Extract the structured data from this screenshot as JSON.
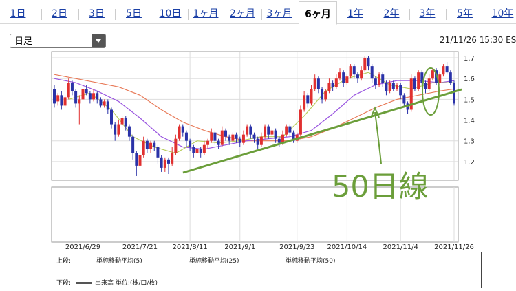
{
  "period_tabs": [
    "1日",
    "2日",
    "3日",
    "5日",
    "10日",
    "1ヶ月",
    "2ヶ月",
    "3ヶ月",
    "6ヶ月",
    "1年",
    "2年",
    "3年",
    "5年",
    "10年"
  ],
  "active_tab": "6ヶ月",
  "interval_select": {
    "value": "日足"
  },
  "timestamp": "21/11/26 15:30 ES",
  "annotation": {
    "label": "50日線"
  },
  "colors": {
    "up": "#e03030",
    "down": "#2a32a8",
    "ma5": "#b8cc5c",
    "ma25": "#9a56e0",
    "ma50": "#e87a58",
    "annotation": "#6b9e3a",
    "tab_link": "#1a3fa6"
  },
  "legend": {
    "upper_label": "上段:",
    "lower_label": "下段:",
    "ma5": "単純移動平均(5)",
    "ma25": "単純移動平均(25)",
    "ma50": "単純移動平均(50)",
    "volume": "出来高 単位:(株/口/枚)"
  },
  "chart_data": {
    "type": "candlestick",
    "y_ticks": [
      1.2,
      1.3,
      1.4,
      1.5,
      1.6,
      1.7
    ],
    "y_range": [
      1.11,
      1.73
    ],
    "x_ticks": [
      "2021/6/29",
      "2021/7/21",
      "2021/8/11",
      "2021/9/1",
      "2021/9/23",
      "2021/10/14",
      "2021/11/4",
      "2021/11/26"
    ],
    "x_tick_index": [
      8,
      24,
      38,
      52,
      68,
      82,
      97,
      112
    ],
    "candles": [
      [
        1.55,
        1.48,
        1.57,
        1.46
      ],
      [
        1.49,
        1.52,
        1.53,
        1.47
      ],
      [
        1.52,
        1.47,
        1.54,
        1.45
      ],
      [
        1.47,
        1.51,
        1.52,
        1.46
      ],
      [
        1.51,
        1.58,
        1.6,
        1.5
      ],
      [
        1.58,
        1.54,
        1.59,
        1.52
      ],
      [
        1.54,
        1.48,
        1.55,
        1.46
      ],
      [
        1.48,
        1.5,
        1.52,
        1.38
      ],
      [
        1.5,
        1.55,
        1.56,
        1.49
      ],
      [
        1.55,
        1.53,
        1.57,
        1.52
      ],
      [
        1.53,
        1.5,
        1.54,
        1.48
      ],
      [
        1.5,
        1.53,
        1.55,
        1.49
      ],
      [
        1.53,
        1.5,
        1.54,
        1.48
      ],
      [
        1.5,
        1.47,
        1.51,
        1.46
      ],
      [
        1.47,
        1.49,
        1.5,
        1.46
      ],
      [
        1.49,
        1.45,
        1.5,
        1.43
      ],
      [
        1.45,
        1.38,
        1.46,
        1.36
      ],
      [
        1.38,
        1.33,
        1.39,
        1.3
      ],
      [
        1.33,
        1.38,
        1.4,
        1.32
      ],
      [
        1.38,
        1.41,
        1.42,
        1.37
      ],
      [
        1.41,
        1.37,
        1.42,
        1.35
      ],
      [
        1.37,
        1.32,
        1.38,
        1.3
      ],
      [
        1.32,
        1.24,
        1.33,
        1.21
      ],
      [
        1.24,
        1.18,
        1.25,
        1.13
      ],
      [
        1.18,
        1.23,
        1.3,
        1.17
      ],
      [
        1.23,
        1.3,
        1.32,
        1.22
      ],
      [
        1.3,
        1.26,
        1.31,
        1.24
      ],
      [
        1.26,
        1.29,
        1.3,
        1.24
      ],
      [
        1.29,
        1.27,
        1.3,
        1.25
      ],
      [
        1.27,
        1.22,
        1.28,
        1.19
      ],
      [
        1.22,
        1.17,
        1.23,
        1.15
      ],
      [
        1.17,
        1.21,
        1.22,
        1.15
      ],
      [
        1.21,
        1.19,
        1.22,
        1.14
      ],
      [
        1.19,
        1.24,
        1.27,
        1.18
      ],
      [
        1.24,
        1.31,
        1.33,
        1.23
      ],
      [
        1.31,
        1.37,
        1.38,
        1.3
      ],
      [
        1.37,
        1.34,
        1.38,
        1.32
      ],
      [
        1.34,
        1.3,
        1.35,
        1.27
      ],
      [
        1.3,
        1.27,
        1.31,
        1.25
      ],
      [
        1.27,
        1.24,
        1.28,
        1.22
      ],
      [
        1.24,
        1.26,
        1.27,
        1.22
      ],
      [
        1.26,
        1.24,
        1.27,
        1.22
      ],
      [
        1.24,
        1.28,
        1.3,
        1.23
      ],
      [
        1.28,
        1.3,
        1.31,
        1.26
      ],
      [
        1.3,
        1.34,
        1.36,
        1.29
      ],
      [
        1.34,
        1.3,
        1.35,
        1.28
      ],
      [
        1.3,
        1.28,
        1.31,
        1.26
      ],
      [
        1.28,
        1.35,
        1.37,
        1.27
      ],
      [
        1.35,
        1.32,
        1.36,
        1.3
      ],
      [
        1.32,
        1.3,
        1.33,
        1.28
      ],
      [
        1.3,
        1.33,
        1.34,
        1.29
      ],
      [
        1.33,
        1.31,
        1.34,
        1.29
      ],
      [
        1.31,
        1.29,
        1.32,
        1.27
      ],
      [
        1.29,
        1.33,
        1.35,
        1.28
      ],
      [
        1.33,
        1.37,
        1.38,
        1.32
      ],
      [
        1.37,
        1.33,
        1.38,
        1.31
      ],
      [
        1.33,
        1.31,
        1.34,
        1.29
      ],
      [
        1.31,
        1.28,
        1.32,
        1.26
      ],
      [
        1.28,
        1.32,
        1.34,
        1.27
      ],
      [
        1.32,
        1.37,
        1.38,
        1.31
      ],
      [
        1.37,
        1.33,
        1.38,
        1.31
      ],
      [
        1.33,
        1.35,
        1.36,
        1.32
      ],
      [
        1.35,
        1.31,
        1.36,
        1.29
      ],
      [
        1.31,
        1.29,
        1.32,
        1.27
      ],
      [
        1.29,
        1.33,
        1.35,
        1.28
      ],
      [
        1.33,
        1.37,
        1.38,
        1.32
      ],
      [
        1.37,
        1.34,
        1.38,
        1.32
      ],
      [
        1.34,
        1.3,
        1.35,
        1.29
      ],
      [
        1.3,
        1.33,
        1.34,
        1.29
      ],
      [
        1.33,
        1.45,
        1.47,
        1.32
      ],
      [
        1.45,
        1.52,
        1.54,
        1.44
      ],
      [
        1.52,
        1.48,
        1.53,
        1.46
      ],
      [
        1.48,
        1.55,
        1.57,
        1.47
      ],
      [
        1.55,
        1.6,
        1.62,
        1.54
      ],
      [
        1.6,
        1.55,
        1.61,
        1.53
      ],
      [
        1.55,
        1.5,
        1.56,
        1.48
      ],
      [
        1.5,
        1.54,
        1.55,
        1.49
      ],
      [
        1.54,
        1.58,
        1.6,
        1.53
      ],
      [
        1.58,
        1.56,
        1.59,
        1.54
      ],
      [
        1.56,
        1.6,
        1.62,
        1.55
      ],
      [
        1.6,
        1.63,
        1.65,
        1.59
      ],
      [
        1.63,
        1.58,
        1.64,
        1.56
      ],
      [
        1.58,
        1.61,
        1.62,
        1.57
      ],
      [
        1.61,
        1.66,
        1.67,
        1.6
      ],
      [
        1.66,
        1.62,
        1.67,
        1.6
      ],
      [
        1.62,
        1.6,
        1.63,
        1.58
      ],
      [
        1.6,
        1.64,
        1.66,
        1.59
      ],
      [
        1.64,
        1.7,
        1.71,
        1.63
      ],
      [
        1.7,
        1.66,
        1.71,
        1.64
      ],
      [
        1.66,
        1.6,
        1.67,
        1.58
      ],
      [
        1.6,
        1.57,
        1.61,
        1.55
      ],
      [
        1.57,
        1.62,
        1.63,
        1.56
      ],
      [
        1.62,
        1.58,
        1.63,
        1.56
      ],
      [
        1.58,
        1.54,
        1.59,
        1.52
      ],
      [
        1.54,
        1.58,
        1.59,
        1.53
      ],
      [
        1.58,
        1.55,
        1.59,
        1.54
      ],
      [
        1.55,
        1.57,
        1.58,
        1.54
      ],
      [
        1.57,
        1.52,
        1.58,
        1.5
      ],
      [
        1.52,
        1.48,
        1.53,
        1.46
      ],
      [
        1.48,
        1.45,
        1.49,
        1.43
      ],
      [
        1.45,
        1.6,
        1.62,
        1.44
      ],
      [
        1.6,
        1.55,
        1.61,
        1.54
      ],
      [
        1.55,
        1.63,
        1.64,
        1.54
      ],
      [
        1.63,
        1.58,
        1.64,
        1.57
      ],
      [
        1.58,
        1.55,
        1.59,
        1.53
      ],
      [
        1.55,
        1.6,
        1.62,
        1.54
      ],
      [
        1.6,
        1.64,
        1.65,
        1.59
      ],
      [
        1.64,
        1.58,
        1.65,
        1.57
      ],
      [
        1.58,
        1.62,
        1.63,
        1.57
      ],
      [
        1.62,
        1.66,
        1.67,
        1.61
      ],
      [
        1.66,
        1.63,
        1.68,
        1.62
      ],
      [
        1.63,
        1.58,
        1.64,
        1.57
      ],
      [
        1.58,
        1.48,
        1.59,
        1.47
      ]
    ],
    "ma5": [
      [
        4,
        1.5
      ],
      [
        10,
        1.53
      ],
      [
        16,
        1.45
      ],
      [
        22,
        1.32
      ],
      [
        28,
        1.27
      ],
      [
        34,
        1.24
      ],
      [
        40,
        1.3
      ],
      [
        46,
        1.29
      ],
      [
        52,
        1.3
      ],
      [
        58,
        1.32
      ],
      [
        64,
        1.32
      ],
      [
        70,
        1.42
      ],
      [
        76,
        1.54
      ],
      [
        82,
        1.6
      ],
      [
        88,
        1.63
      ],
      [
        94,
        1.57
      ],
      [
        100,
        1.55
      ],
      [
        106,
        1.58
      ],
      [
        112,
        1.58
      ]
    ],
    "ma25": [
      [
        0,
        1.6
      ],
      [
        6,
        1.58
      ],
      [
        12,
        1.54
      ],
      [
        18,
        1.49
      ],
      [
        24,
        1.41
      ],
      [
        30,
        1.32
      ],
      [
        36,
        1.27
      ],
      [
        42,
        1.26
      ],
      [
        48,
        1.28
      ],
      [
        54,
        1.3
      ],
      [
        60,
        1.31
      ],
      [
        66,
        1.32
      ],
      [
        72,
        1.35
      ],
      [
        78,
        1.43
      ],
      [
        84,
        1.52
      ],
      [
        90,
        1.57
      ],
      [
        96,
        1.59
      ],
      [
        102,
        1.59
      ],
      [
        108,
        1.58
      ],
      [
        112,
        1.59
      ]
    ],
    "ma50": [
      [
        0,
        1.62
      ],
      [
        6,
        1.6
      ],
      [
        12,
        1.58
      ],
      [
        18,
        1.56
      ],
      [
        24,
        1.52
      ],
      [
        30,
        1.45
      ],
      [
        36,
        1.39
      ],
      [
        42,
        1.35
      ],
      [
        48,
        1.32
      ],
      [
        54,
        1.3
      ],
      [
        60,
        1.3
      ],
      [
        66,
        1.3
      ],
      [
        72,
        1.32
      ],
      [
        78,
        1.36
      ],
      [
        84,
        1.41
      ],
      [
        90,
        1.46
      ],
      [
        96,
        1.5
      ],
      [
        102,
        1.52
      ],
      [
        108,
        1.54
      ],
      [
        112,
        1.55
      ]
    ]
  }
}
